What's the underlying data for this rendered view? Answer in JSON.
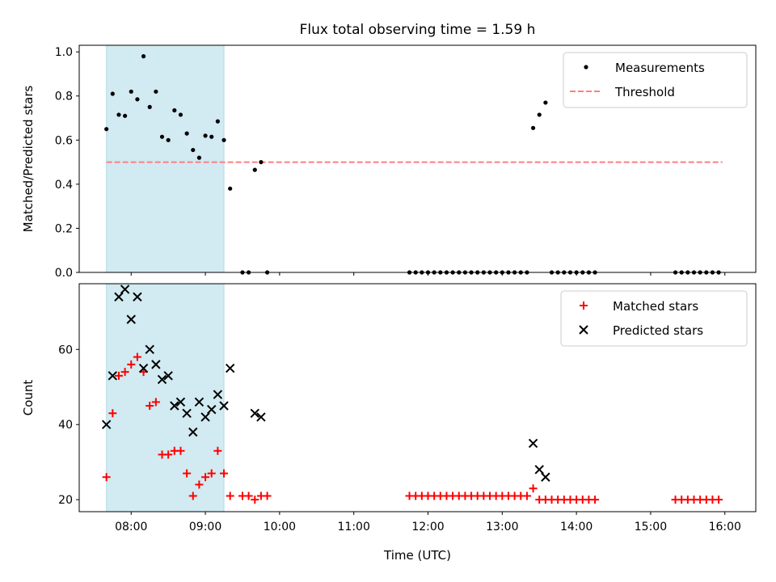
{
  "chart_data": [
    {
      "type": "scatter",
      "title": "Flux total observing time = 1.59 h",
      "xlabel": "",
      "ylabel": "Matched/Predicted stars",
      "xlim": [
        "07:18",
        "16:25"
      ],
      "ylim": [
        0,
        1.03
      ],
      "yticks": [
        "0.0",
        "0.2",
        "0.4",
        "0.6",
        "0.8",
        "1.0"
      ],
      "highlight_span": {
        "start": "07:40",
        "end": "09:15",
        "color": "#add8e6"
      },
      "threshold": {
        "name": "Threshold",
        "y": 0.5,
        "x_start": "07:40",
        "x_end": "15:58",
        "color": "#ff7f7f",
        "style": "dashed"
      },
      "legend": {
        "position": "upper right",
        "entries": [
          "Measurements",
          "Threshold"
        ]
      },
      "series": [
        {
          "name": "Measurements",
          "color": "#000000",
          "marker": "dot",
          "points": [
            [
              "07:40",
              0.65
            ],
            [
              "07:45",
              0.81
            ],
            [
              "07:50",
              0.715
            ],
            [
              "07:55",
              0.71
            ],
            [
              "08:00",
              0.82
            ],
            [
              "08:05",
              0.785
            ],
            [
              "08:10",
              0.98
            ],
            [
              "08:15",
              0.75
            ],
            [
              "08:20",
              0.82
            ],
            [
              "08:25",
              0.615
            ],
            [
              "08:30",
              0.6
            ],
            [
              "08:35",
              0.735
            ],
            [
              "08:40",
              0.715
            ],
            [
              "08:45",
              0.63
            ],
            [
              "08:50",
              0.555
            ],
            [
              "08:55",
              0.52
            ],
            [
              "09:00",
              0.62
            ],
            [
              "09:05",
              0.615
            ],
            [
              "09:10",
              0.685
            ],
            [
              "09:15",
              0.6
            ],
            [
              "09:20",
              0.38
            ],
            [
              "09:30",
              0.0
            ],
            [
              "09:35",
              0.0
            ],
            [
              "09:40",
              0.465
            ],
            [
              "09:45",
              0.5
            ],
            [
              "09:50",
              0.0
            ],
            [
              "11:45",
              0.0
            ],
            [
              "11:50",
              0.0
            ],
            [
              "11:55",
              0.0
            ],
            [
              "12:00",
              0.0
            ],
            [
              "12:05",
              0.0
            ],
            [
              "12:10",
              0.0
            ],
            [
              "12:15",
              0.0
            ],
            [
              "12:20",
              0.0
            ],
            [
              "12:25",
              0.0
            ],
            [
              "12:30",
              0.0
            ],
            [
              "12:35",
              0.0
            ],
            [
              "12:40",
              0.0
            ],
            [
              "12:45",
              0.0
            ],
            [
              "12:50",
              0.0
            ],
            [
              "12:55",
              0.0
            ],
            [
              "13:00",
              0.0
            ],
            [
              "13:05",
              0.0
            ],
            [
              "13:10",
              0.0
            ],
            [
              "13:15",
              0.0
            ],
            [
              "13:20",
              0.0
            ],
            [
              "13:25",
              0.655
            ],
            [
              "13:30",
              0.715
            ],
            [
              "13:35",
              0.77
            ],
            [
              "13:40",
              0.0
            ],
            [
              "13:45",
              0.0
            ],
            [
              "13:50",
              0.0
            ],
            [
              "13:55",
              0.0
            ],
            [
              "14:00",
              0.0
            ],
            [
              "14:05",
              0.0
            ],
            [
              "14:10",
              0.0
            ],
            [
              "14:15",
              0.0
            ],
            [
              "15:20",
              0.0
            ],
            [
              "15:25",
              0.0
            ],
            [
              "15:30",
              0.0
            ],
            [
              "15:35",
              0.0
            ],
            [
              "15:40",
              0.0
            ],
            [
              "15:45",
              0.0
            ],
            [
              "15:50",
              0.0
            ],
            [
              "15:55",
              0.0
            ]
          ]
        }
      ]
    },
    {
      "type": "scatter",
      "title": "",
      "xlabel": "Time (UTC)",
      "ylabel": "Count",
      "xlim": [
        "07:18",
        "16:25"
      ],
      "ylim": [
        16.8,
        77.5
      ],
      "yticks": [
        "20",
        "40",
        "60"
      ],
      "xticks": [
        "08:00",
        "09:00",
        "10:00",
        "11:00",
        "12:00",
        "13:00",
        "14:00",
        "15:00",
        "16:00"
      ],
      "highlight_span": {
        "start": "07:40",
        "end": "09:15",
        "color": "#add8e6"
      },
      "legend": {
        "position": "upper right",
        "entries": [
          "Matched stars",
          "Predicted stars"
        ]
      },
      "series": [
        {
          "name": "Matched stars",
          "color": "#ff0000",
          "marker": "plus",
          "points": [
            [
              "07:40",
              26
            ],
            [
              "07:45",
              43
            ],
            [
              "07:50",
              53
            ],
            [
              "07:55",
              54
            ],
            [
              "08:00",
              56
            ],
            [
              "08:05",
              58
            ],
            [
              "08:10",
              54
            ],
            [
              "08:15",
              45
            ],
            [
              "08:20",
              46
            ],
            [
              "08:25",
              32
            ],
            [
              "08:30",
              32
            ],
            [
              "08:35",
              33
            ],
            [
              "08:40",
              33
            ],
            [
              "08:45",
              27
            ],
            [
              "08:50",
              21
            ],
            [
              "08:55",
              24
            ],
            [
              "09:00",
              26
            ],
            [
              "09:05",
              27
            ],
            [
              "09:10",
              33
            ],
            [
              "09:15",
              27
            ],
            [
              "09:20",
              21
            ],
            [
              "09:30",
              21
            ],
            [
              "09:35",
              21
            ],
            [
              "09:40",
              20
            ],
            [
              "09:45",
              21
            ],
            [
              "09:50",
              21
            ],
            [
              "11:45",
              21
            ],
            [
              "11:50",
              21
            ],
            [
              "11:55",
              21
            ],
            [
              "12:00",
              21
            ],
            [
              "12:05",
              21
            ],
            [
              "12:10",
              21
            ],
            [
              "12:15",
              21
            ],
            [
              "12:20",
              21
            ],
            [
              "12:25",
              21
            ],
            [
              "12:30",
              21
            ],
            [
              "12:35",
              21
            ],
            [
              "12:40",
              21
            ],
            [
              "12:45",
              21
            ],
            [
              "12:50",
              21
            ],
            [
              "12:55",
              21
            ],
            [
              "13:00",
              21
            ],
            [
              "13:05",
              21
            ],
            [
              "13:10",
              21
            ],
            [
              "13:15",
              21
            ],
            [
              "13:20",
              21
            ],
            [
              "13:25",
              23
            ],
            [
              "13:30",
              20
            ],
            [
              "13:35",
              20
            ],
            [
              "13:40",
              20
            ],
            [
              "13:45",
              20
            ],
            [
              "13:50",
              20
            ],
            [
              "13:55",
              20
            ],
            [
              "14:00",
              20
            ],
            [
              "14:05",
              20
            ],
            [
              "14:10",
              20
            ],
            [
              "14:15",
              20
            ],
            [
              "15:20",
              20
            ],
            [
              "15:25",
              20
            ],
            [
              "15:30",
              20
            ],
            [
              "15:35",
              20
            ],
            [
              "15:40",
              20
            ],
            [
              "15:45",
              20
            ],
            [
              "15:50",
              20
            ],
            [
              "15:55",
              20
            ]
          ]
        },
        {
          "name": "Predicted stars",
          "color": "#000000",
          "marker": "x",
          "points": [
            [
              "07:40",
              40
            ],
            [
              "07:45",
              53
            ],
            [
              "07:50",
              74
            ],
            [
              "07:55",
              76
            ],
            [
              "08:00",
              68
            ],
            [
              "08:05",
              74
            ],
            [
              "08:10",
              55
            ],
            [
              "08:15",
              60
            ],
            [
              "08:20",
              56
            ],
            [
              "08:25",
              52
            ],
            [
              "08:30",
              53
            ],
            [
              "08:35",
              45
            ],
            [
              "08:40",
              46
            ],
            [
              "08:45",
              43
            ],
            [
              "08:50",
              38
            ],
            [
              "08:55",
              46
            ],
            [
              "09:00",
              42
            ],
            [
              "09:05",
              44
            ],
            [
              "09:10",
              48
            ],
            [
              "09:15",
              45
            ],
            [
              "09:20",
              55
            ],
            [
              "09:40",
              43
            ],
            [
              "09:45",
              42
            ],
            [
              "13:25",
              35
            ],
            [
              "13:30",
              28
            ],
            [
              "13:35",
              26
            ]
          ]
        }
      ]
    }
  ]
}
